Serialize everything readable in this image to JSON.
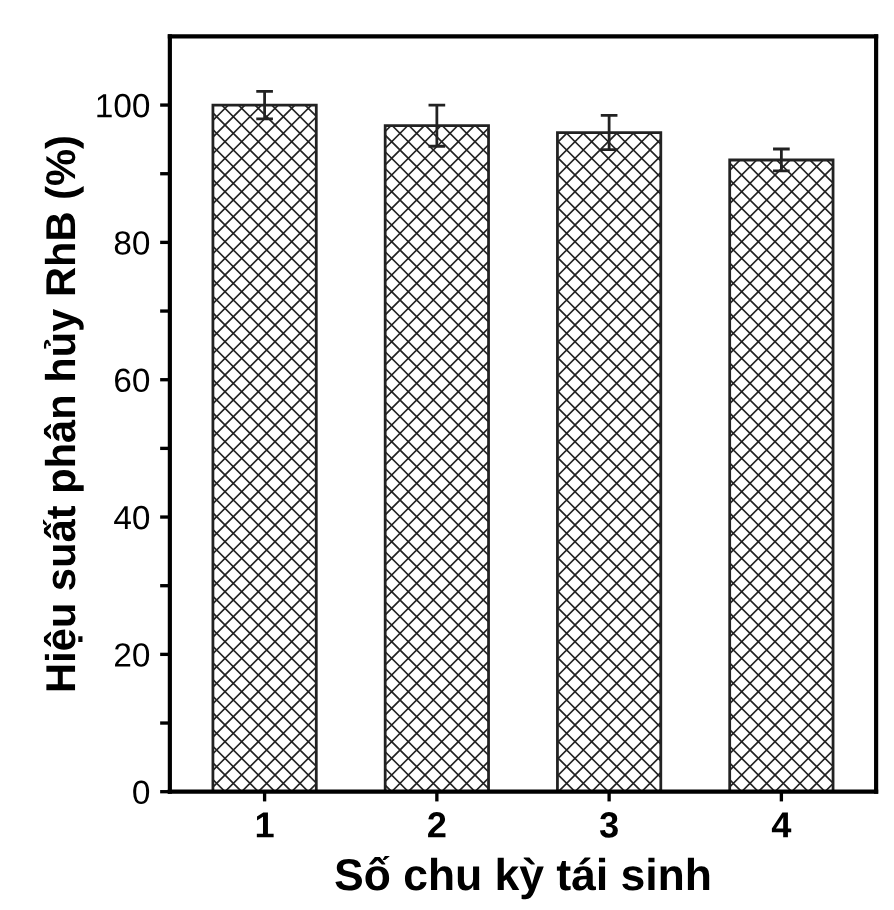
{
  "chart_data": {
    "type": "bar",
    "xlabel": "Số chu kỳ tái sinh",
    "ylabel": "Hiệu suất phân hủy RhB (%)",
    "categories": [
      "1",
      "2",
      "3",
      "4"
    ],
    "values": [
      100,
      97,
      96,
      92
    ],
    "errors": [
      2,
      3,
      2.5,
      1.6
    ],
    "color": "#222222",
    "ylim": [
      0,
      110
    ],
    "yticks": [
      0,
      {
        "value": 10,
        "label": null
      },
      20,
      {
        "value": 30,
        "label": null
      },
      40,
      {
        "value": 50,
        "label": null
      },
      60,
      {
        "value": 70,
        "label": null
      },
      80,
      {
        "value": 90,
        "label": null
      },
      100
    ],
    "grid": false
  }
}
